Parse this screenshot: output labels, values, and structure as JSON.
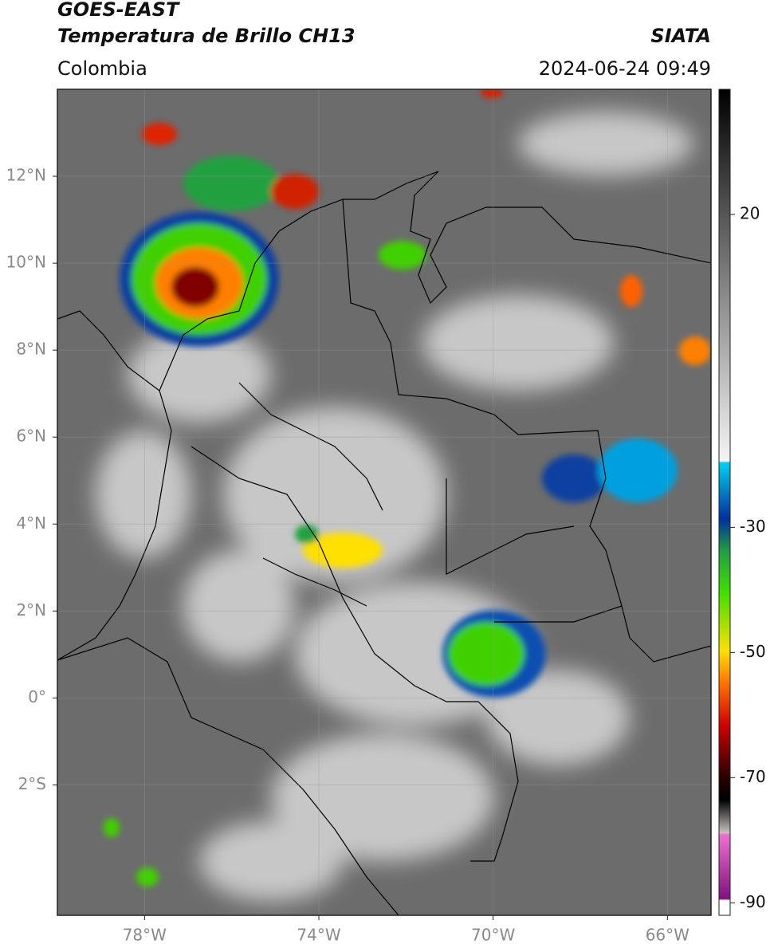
{
  "header": {
    "title": "GOES-EAST",
    "subtitle": "Temperatura de Brillo CH13",
    "source": "SIATA",
    "region": "Colombia",
    "datetime": "2024-06-24 09:49"
  },
  "map": {
    "xlim": [
      -80,
      -65
    ],
    "ylim": [
      -5,
      14
    ],
    "xticks": [
      {
        "value": -78,
        "label": "78°W"
      },
      {
        "value": -74,
        "label": "74°W"
      },
      {
        "value": -70,
        "label": "70°W"
      },
      {
        "value": -66,
        "label": "66°W"
      }
    ],
    "yticks": [
      {
        "value": 12,
        "label": "12°N"
      },
      {
        "value": 10,
        "label": "10°N"
      },
      {
        "value": 8,
        "label": "8°N"
      },
      {
        "value": 6,
        "label": "6°N"
      },
      {
        "value": 4,
        "label": "4°N"
      },
      {
        "value": 2,
        "label": "2°N"
      },
      {
        "value": 0,
        "label": "0°"
      },
      {
        "value": -2,
        "label": "2°S"
      }
    ]
  },
  "colorbar": {
    "lim": [
      -92,
      40
    ],
    "ticks": [
      20,
      -30,
      -50,
      -70,
      -90
    ]
  }
}
